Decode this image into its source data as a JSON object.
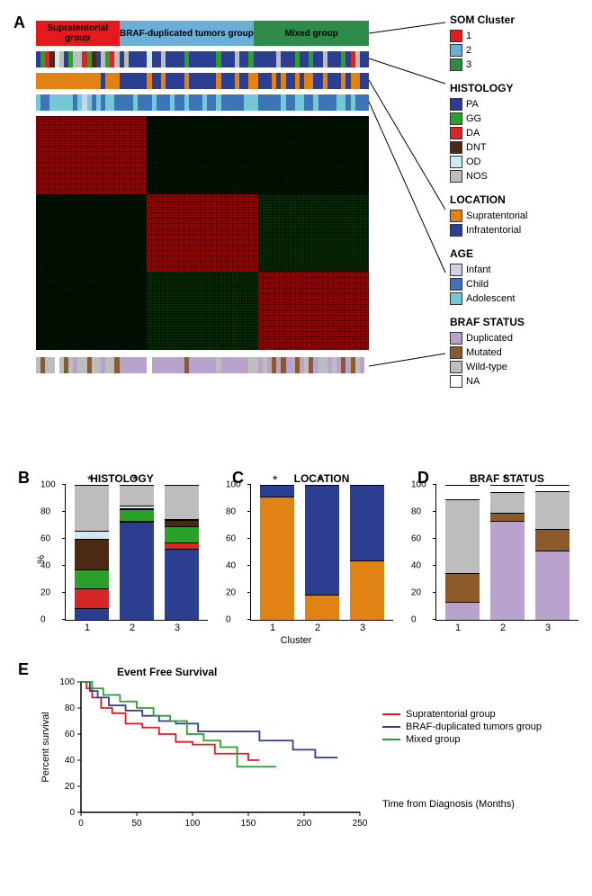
{
  "panelA": {
    "label": "A",
    "cluster_bar": [
      {
        "label": "Supratentorial group",
        "color": "#e41a1c",
        "width": 0.25
      },
      {
        "label": "BRAF-duplicated tumors group",
        "color": "#6baed6",
        "width": 0.405
      },
      {
        "label": "Mixed group",
        "color": "#2f8b4a",
        "width": 0.345
      }
    ],
    "tracks": {
      "histology": [
        "PA",
        "GG",
        "DA",
        "DNT",
        "OD",
        "NOS",
        "PA",
        "GG",
        "NOS",
        "NOS",
        "DA",
        "GG",
        "DNT",
        "PA",
        "NOS",
        "GG",
        "DA",
        "NOS",
        "PA",
        "NOS",
        "PA",
        "PA",
        "PA",
        "PA",
        "OD",
        "PA",
        "PA",
        "NOS",
        "PA",
        "PA",
        "PA",
        "PA",
        "GG",
        "PA",
        "PA",
        "PA",
        "PA",
        "PA",
        "PA",
        "GG",
        "PA",
        "PA",
        "PA",
        "NOS",
        "PA",
        "PA",
        "GG",
        "PA",
        "PA",
        "PA",
        "PA",
        "PA",
        "NOS",
        "PA",
        "PA",
        "PA",
        "GG",
        "PA",
        "PA",
        "GG",
        "PA",
        "PA",
        "NOS",
        "PA",
        "PA",
        "PA",
        "GG",
        "PA",
        "DA",
        "NOS",
        "PA",
        "PA"
      ],
      "location": [
        "Supratentorial",
        "Supratentorial",
        "Supratentorial",
        "Supratentorial",
        "Supratentorial",
        "Supratentorial",
        "Supratentorial",
        "Supratentorial",
        "Supratentorial",
        "Supratentorial",
        "Supratentorial",
        "Supratentorial",
        "Supratentorial",
        "Supratentorial",
        "Infratentorial",
        "Supratentorial",
        "Supratentorial",
        "Supratentorial",
        "Infratentorial",
        "Infratentorial",
        "Infratentorial",
        "Infratentorial",
        "Infratentorial",
        "Infratentorial",
        "Supratentorial",
        "Infratentorial",
        "Infratentorial",
        "Supratentorial",
        "Infratentorial",
        "Infratentorial",
        "Infratentorial",
        "Infratentorial",
        "Supratentorial",
        "Infratentorial",
        "Infratentorial",
        "Infratentorial",
        "Infratentorial",
        "Infratentorial",
        "Infratentorial",
        "Supratentorial",
        "Infratentorial",
        "Infratentorial",
        "Infratentorial",
        "Supratentorial",
        "Infratentorial",
        "Infratentorial",
        "Supratentorial",
        "Supratentorial",
        "Infratentorial",
        "Infratentorial",
        "Infratentorial",
        "Supratentorial",
        "Infratentorial",
        "Supratentorial",
        "Infratentorial",
        "Infratentorial",
        "Supratentorial",
        "Infratentorial",
        "Supratentorial",
        "Supratentorial",
        "Infratentorial",
        "Infratentorial",
        "Supratentorial",
        "Infratentorial",
        "Infratentorial",
        "Infratentorial",
        "Supratentorial",
        "Infratentorial",
        "Supratentorial",
        "Supratentorial",
        "Infratentorial",
        "Infratentorial"
      ],
      "age": [
        "Adolescent",
        "Child",
        "Child",
        "Adolescent",
        "Adolescent",
        "Adolescent",
        "Adolescent",
        "Adolescent",
        "Child",
        "Adolescent",
        "Infant",
        "Adolescent",
        "Child",
        "Adolescent",
        "Child",
        "Adolescent",
        "Adolescent",
        "Child",
        "Child",
        "Child",
        "Child",
        "Adolescent",
        "Child",
        "Child",
        "Child",
        "Adolescent",
        "Child",
        "Child",
        "Child",
        "Adolescent",
        "Child",
        "Child",
        "Adolescent",
        "Child",
        "Child",
        "Child",
        "Adolescent",
        "Child",
        "Child",
        "Adolescent",
        "Child",
        "Child",
        "Child",
        "Child",
        "Child",
        "Adolescent",
        "Adolescent",
        "Adolescent",
        "Child",
        "Child",
        "Child",
        "Child",
        "Child",
        "Adolescent",
        "Child",
        "Child",
        "Adolescent",
        "Adolescent",
        "Child",
        "Child",
        "Adolescent",
        "Child",
        "Child",
        "Child",
        "Child",
        "Adolescent",
        "Adolescent",
        "Child",
        "Adolescent",
        "Child",
        "Child",
        "Child"
      ],
      "braf": [
        "Wild-type",
        "Mutated",
        "Wild-type",
        "Wild-type",
        "NA",
        "Wild-type",
        "Mutated",
        "Wild-type",
        "Duplicated",
        "Wild-type",
        "Wild-type",
        "Mutated",
        "Wild-type",
        "Wild-type",
        "Duplicated",
        "Wild-type",
        "Wild-type",
        "Mutated",
        "Duplicated",
        "Duplicated",
        "Duplicated",
        "Duplicated",
        "Duplicated",
        "Duplicated",
        "NA",
        "Duplicated",
        "Duplicated",
        "Duplicated",
        "Duplicated",
        "Duplicated",
        "Duplicated",
        "Duplicated",
        "Mutated",
        "Duplicated",
        "Duplicated",
        "Duplicated",
        "Duplicated",
        "Duplicated",
        "Duplicated",
        "Wild-type",
        "Duplicated",
        "Duplicated",
        "Duplicated",
        "Duplicated",
        "Duplicated",
        "Duplicated",
        "Wild-type",
        "Wild-type",
        "Duplicated",
        "Wild-type",
        "Duplicated",
        "Mutated",
        "Duplicated",
        "Mutated",
        "Duplicated",
        "Duplicated",
        "Mutated",
        "Duplicated",
        "Wild-type",
        "Mutated",
        "Duplicated",
        "Wild-type",
        "Wild-type",
        "Duplicated",
        "Wild-type",
        "Duplicated",
        "Mutated",
        "Duplicated",
        "Mutated",
        "Wild-type",
        "Duplicated",
        "NA"
      ]
    },
    "heatmap_blocks": [
      [
        "#cc0000",
        "#003300",
        "#003300"
      ],
      [
        "#003300",
        "#cc0000",
        "#1a4d1a"
      ],
      [
        "#003300",
        "#1a4d1a",
        "#cc0000"
      ]
    ],
    "legends": {
      "som": {
        "title": "SOM Cluster",
        "items": [
          {
            "label": "1",
            "color": "#e41a1c"
          },
          {
            "label": "2",
            "color": "#6baed6"
          },
          {
            "label": "3",
            "color": "#2f8b4a"
          }
        ]
      },
      "histology": {
        "title": "HISTOLOGY",
        "items": [
          {
            "label": "PA",
            "color": "#2c3e8f"
          },
          {
            "label": "GG",
            "color": "#2ca02c"
          },
          {
            "label": "DA",
            "color": "#d62728"
          },
          {
            "label": "DNT",
            "color": "#4a2a13"
          },
          {
            "label": "OD",
            "color": "#cfe8f3"
          },
          {
            "label": "NOS",
            "color": "#bdbdbd"
          }
        ]
      },
      "location": {
        "title": "LOCATION",
        "items": [
          {
            "label": "Supratentorial",
            "color": "#e08214"
          },
          {
            "label": "Infratentorial",
            "color": "#2c3e8f"
          }
        ]
      },
      "age": {
        "title": "AGE",
        "items": [
          {
            "label": "Infant",
            "color": "#d0d1e6"
          },
          {
            "label": "Child",
            "color": "#3d74b5"
          },
          {
            "label": "Adolescent",
            "color": "#74c7d4"
          }
        ]
      },
      "braf": {
        "title": "BRAF STATUS",
        "items": [
          {
            "label": "Duplicated",
            "color": "#b9a2cc"
          },
          {
            "label": "Mutated",
            "color": "#8c5a2b"
          },
          {
            "label": "Wild-type",
            "color": "#bdbdbd"
          },
          {
            "label": "NA",
            "color": "#ffffff"
          }
        ]
      }
    }
  },
  "panelB": {
    "label": "B",
    "title": "HISTOLOGY",
    "ylabel": "%",
    "ylim": [
      0,
      100
    ],
    "ytick_step": 20,
    "stars": [
      1,
      2
    ],
    "bars": [
      [
        {
          "color": "#2c3e8f",
          "pct": 8
        },
        {
          "color": "#d62728",
          "pct": 15
        },
        {
          "color": "#2ca02c",
          "pct": 14
        },
        {
          "color": "#4a2a13",
          "pct": 23
        },
        {
          "color": "#cfe8f3",
          "pct": 5
        },
        {
          "color": "#bdbdbd",
          "pct": 35
        }
      ],
      [
        {
          "color": "#2c3e8f",
          "pct": 75
        },
        {
          "color": "#d62728",
          "pct": 0
        },
        {
          "color": "#2ca02c",
          "pct": 8
        },
        {
          "color": "#4a2a13",
          "pct": 0
        },
        {
          "color": "#cfe8f3",
          "pct": 2
        },
        {
          "color": "#bdbdbd",
          "pct": 15
        }
      ],
      [
        {
          "color": "#2c3e8f",
          "pct": 54
        },
        {
          "color": "#d62728",
          "pct": 4
        },
        {
          "color": "#2ca02c",
          "pct": 12
        },
        {
          "color": "#4a2a13",
          "pct": 4
        },
        {
          "color": "#cfe8f3",
          "pct": 0
        },
        {
          "color": "#bdbdbd",
          "pct": 26
        }
      ]
    ]
  },
  "panelC": {
    "label": "C",
    "title": "LOCATION",
    "ylim": [
      0,
      100
    ],
    "ytick_step": 20,
    "stars": [
      1,
      2
    ],
    "bars": [
      [
        {
          "color": "#e08214",
          "pct": 92
        },
        {
          "color": "#2c3e8f",
          "pct": 8
        }
      ],
      [
        {
          "color": "#e08214",
          "pct": 18
        },
        {
          "color": "#2c3e8f",
          "pct": 82
        }
      ],
      [
        {
          "color": "#e08214",
          "pct": 44
        },
        {
          "color": "#2c3e8f",
          "pct": 56
        }
      ]
    ]
  },
  "panelD": {
    "label": "D",
    "title": "BRAF STATUS",
    "ylim": [
      0,
      100
    ],
    "ytick_step": 20,
    "stars": [
      2
    ],
    "bars": [
      [
        {
          "color": "#b9a2cc",
          "pct": 13
        },
        {
          "color": "#8c5a2b",
          "pct": 21
        },
        {
          "color": "#bdbdbd",
          "pct": 56
        },
        {
          "color": "#ffffff",
          "pct": 10
        }
      ],
      [
        {
          "color": "#b9a2cc",
          "pct": 75
        },
        {
          "color": "#8c5a2b",
          "pct": 5
        },
        {
          "color": "#bdbdbd",
          "pct": 15
        },
        {
          "color": "#ffffff",
          "pct": 5
        }
      ],
      [
        {
          "color": "#b9a2cc",
          "pct": 52
        },
        {
          "color": "#8c5a2b",
          "pct": 16
        },
        {
          "color": "#bdbdbd",
          "pct": 28
        },
        {
          "color": "#ffffff",
          "pct": 4
        }
      ]
    ]
  },
  "xaxis_label": "Cluster",
  "panelE": {
    "label": "E",
    "title": "Event Free Survival",
    "ylabel": "Percent survival",
    "xlabel": "Time from Diagnosis (Months)",
    "xlim": [
      0,
      250
    ],
    "xtick_step": 50,
    "ylim": [
      0,
      100
    ],
    "ytick_step": 20,
    "legend": [
      {
        "label": "Supratentorial group",
        "color": "#e41a1c"
      },
      {
        "label": "BRAF-duplicated tumors group",
        "color": "#2c3e8f"
      },
      {
        "label": "Mixed group",
        "color": "#2ca02c"
      }
    ],
    "curves": {
      "Supratentorial": {
        "color": "#e41a1c",
        "points": [
          [
            0,
            100
          ],
          [
            5,
            95
          ],
          [
            10,
            88
          ],
          [
            18,
            80
          ],
          [
            28,
            76
          ],
          [
            40,
            68
          ],
          [
            55,
            65
          ],
          [
            70,
            60
          ],
          [
            85,
            54
          ],
          [
            100,
            52
          ],
          [
            120,
            45
          ],
          [
            135,
            45
          ],
          [
            150,
            40
          ],
          [
            160,
            40
          ]
        ]
      },
      "BRAF": {
        "color": "#2c3e8f",
        "points": [
          [
            0,
            100
          ],
          [
            8,
            93
          ],
          [
            15,
            88
          ],
          [
            25,
            82
          ],
          [
            40,
            78
          ],
          [
            55,
            74
          ],
          [
            70,
            70
          ],
          [
            85,
            68
          ],
          [
            105,
            62
          ],
          [
            130,
            62
          ],
          [
            160,
            55
          ],
          [
            190,
            48
          ],
          [
            210,
            42
          ],
          [
            230,
            42
          ]
        ]
      },
      "Mixed": {
        "color": "#2ca02c",
        "points": [
          [
            0,
            100
          ],
          [
            10,
            95
          ],
          [
            20,
            90
          ],
          [
            35,
            85
          ],
          [
            50,
            80
          ],
          [
            65,
            74
          ],
          [
            80,
            70
          ],
          [
            95,
            60
          ],
          [
            110,
            55
          ],
          [
            125,
            50
          ],
          [
            140,
            35
          ],
          [
            160,
            35
          ],
          [
            175,
            35
          ]
        ]
      }
    }
  }
}
